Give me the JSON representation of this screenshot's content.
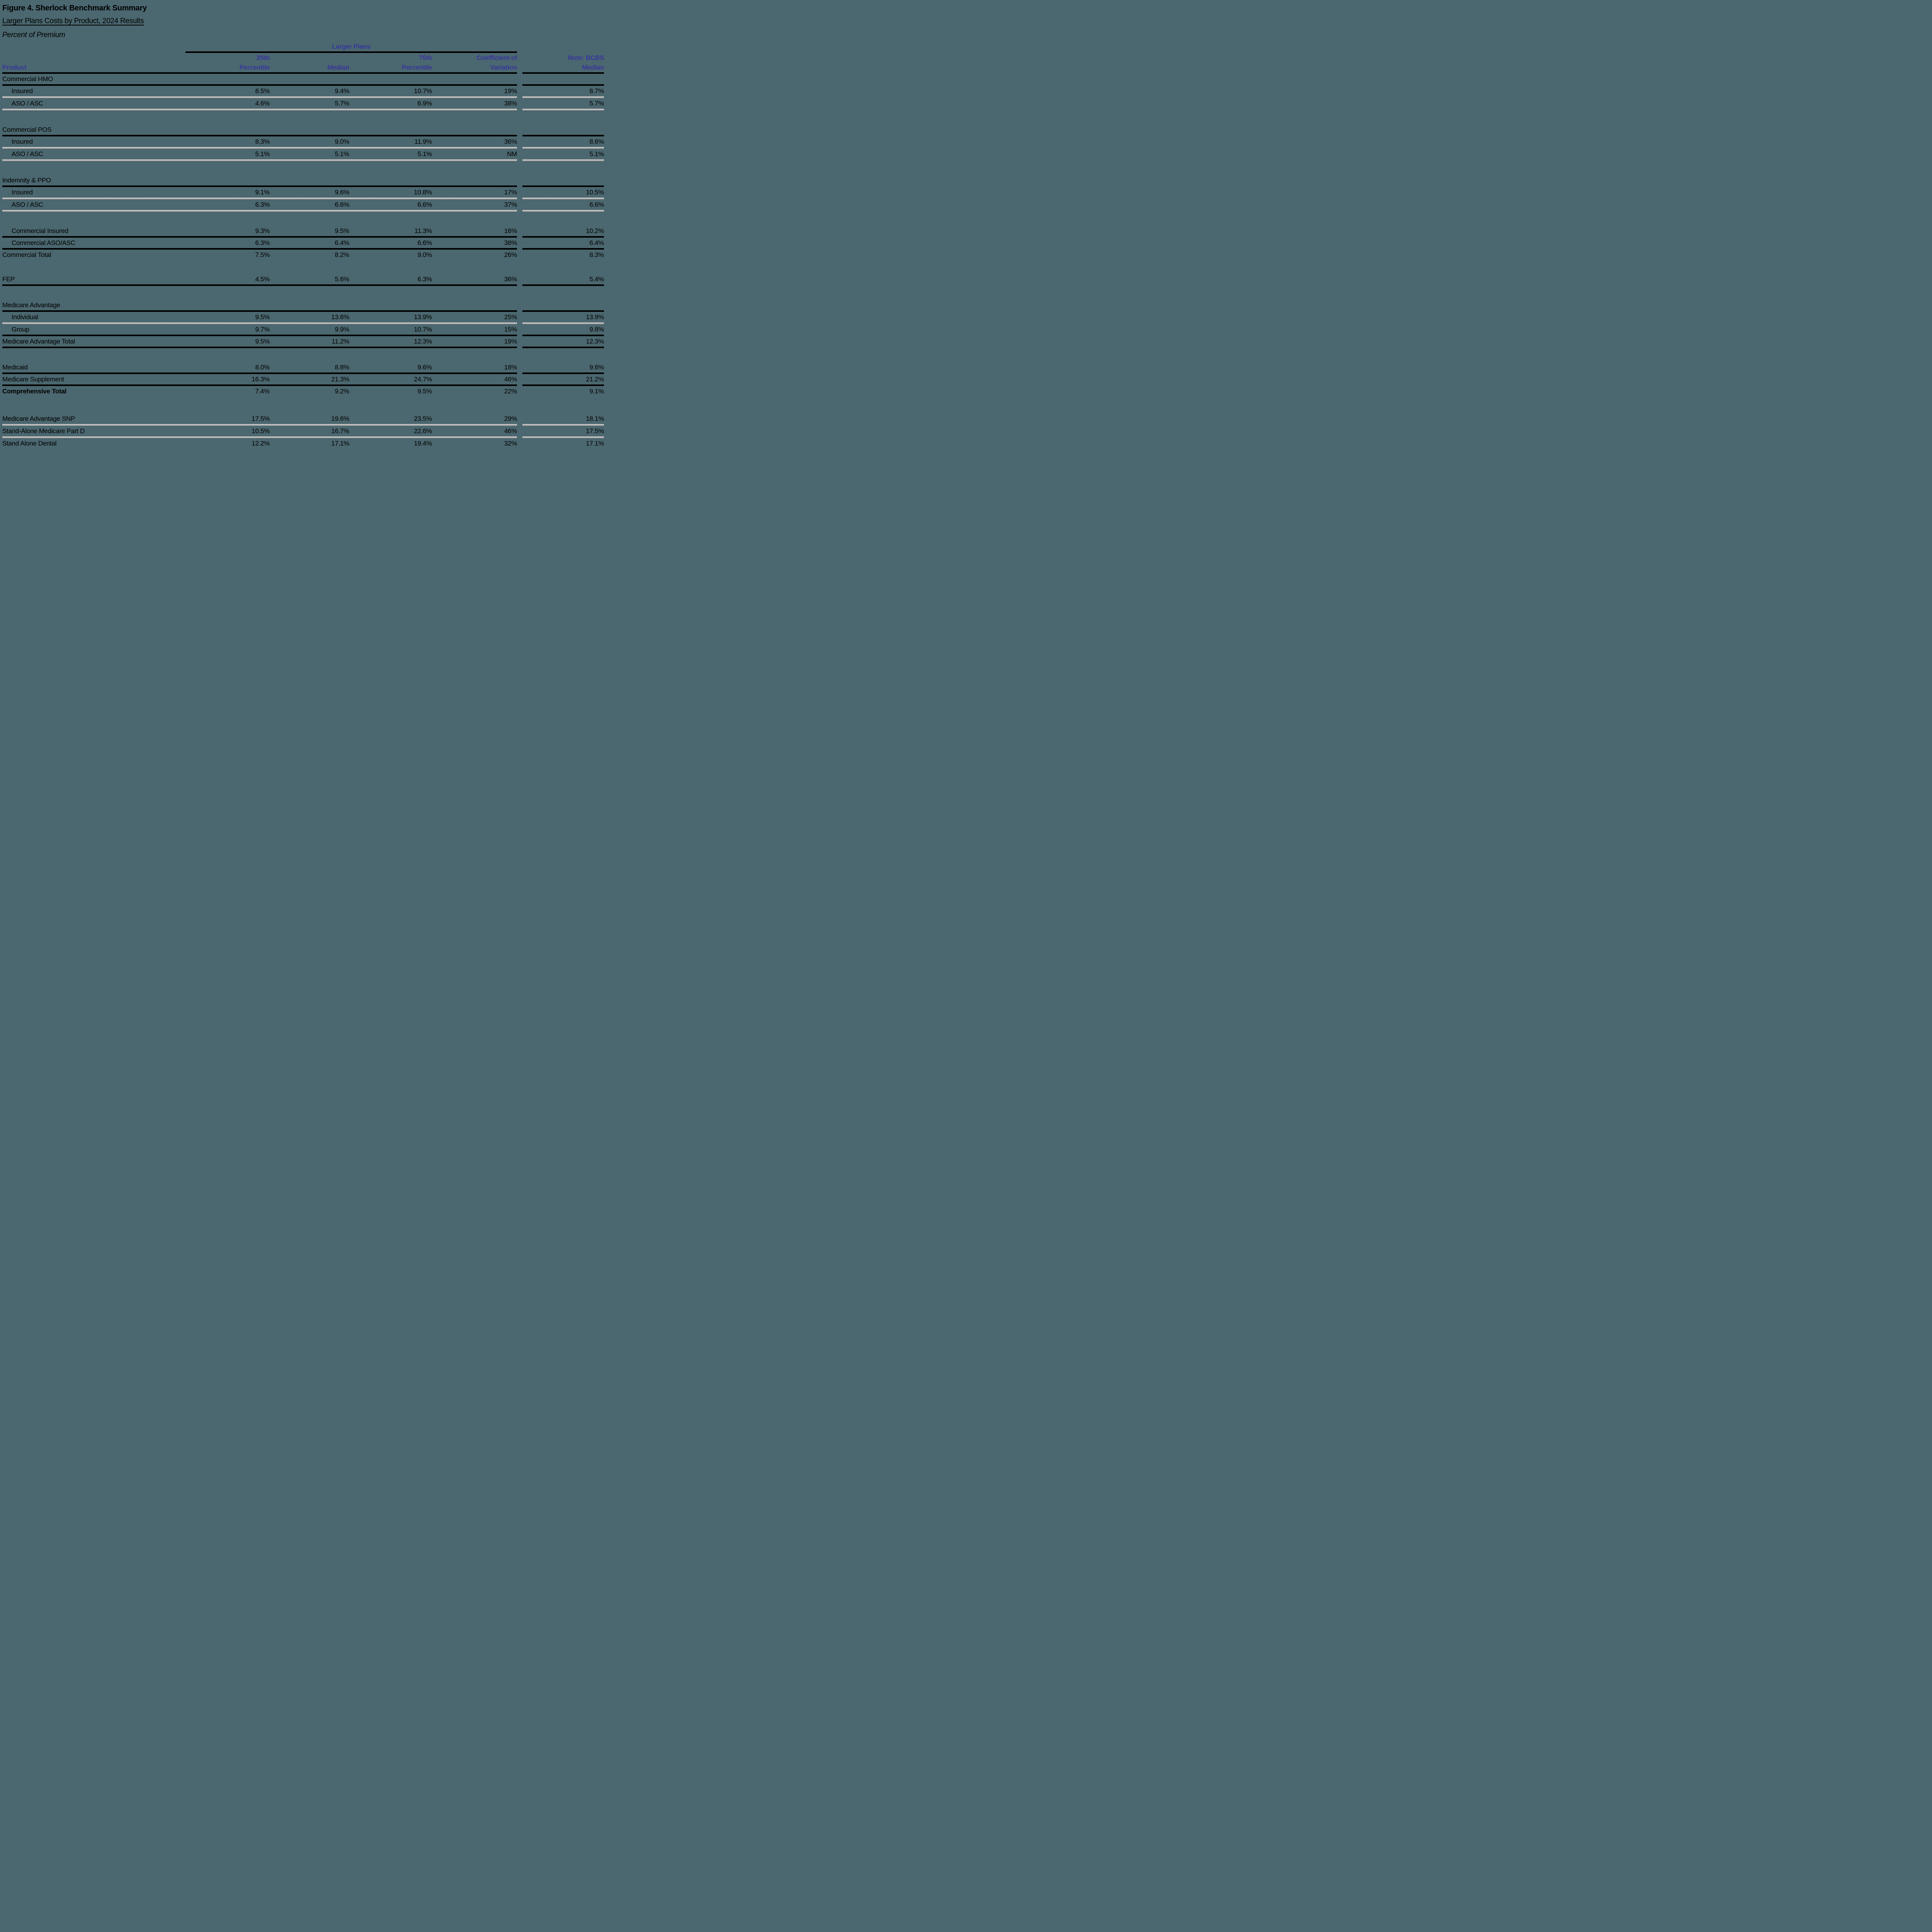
{
  "page": {
    "title": "Figure 4. Sherlock Benchmark Summary",
    "subtitle": "Larger Plans Costs by Product, 2024 Results",
    "unit_note": "Percent of Premium"
  },
  "colors": {
    "background": "#4b676f",
    "header_text": "#38379b",
    "body_text": "#000000",
    "rule_black": "#000000",
    "rule_gray": "#b0b0b0"
  },
  "table": {
    "span_header": "Larger Plans",
    "product_header": "Product",
    "columns": [
      {
        "line1": "25th",
        "line2": "Percentile"
      },
      {
        "line1": "",
        "line2": "Median"
      },
      {
        "line1": "75th",
        "line2": "Percentile"
      },
      {
        "line1": "Coefficient of",
        "line2": "Variation"
      }
    ],
    "note_column": {
      "line1": "Note: BCBS",
      "line2": "Median"
    },
    "rows": [
      {
        "type": "group",
        "label": "Commercial HMO",
        "rule": "black"
      },
      {
        "type": "data",
        "label": "Insured",
        "indent": true,
        "values": [
          "8.5%",
          "9.4%",
          "10.7%",
          "19%"
        ],
        "bcbs": "8.7%",
        "rule": "gray"
      },
      {
        "type": "data",
        "label": "ASO / ASC",
        "indent": true,
        "values": [
          "4.6%",
          "5.7%",
          "6.9%",
          "38%"
        ],
        "bcbs": "5.7%",
        "rule": "gray"
      },
      {
        "type": "spacer"
      },
      {
        "type": "group",
        "label": "Commercial POS",
        "rule": "black"
      },
      {
        "type": "data",
        "label": "Insured",
        "indent": true,
        "values": [
          "8.3%",
          "9.0%",
          "11.9%",
          "36%"
        ],
        "bcbs": "8.6%",
        "rule": "gray"
      },
      {
        "type": "data",
        "label": "ASO / ASC",
        "indent": true,
        "values": [
          "5.1%",
          "5.1%",
          "5.1%",
          "NM"
        ],
        "bcbs": "5.1%",
        "rule": "gray"
      },
      {
        "type": "spacer"
      },
      {
        "type": "group",
        "label": "Indemnity & PPO",
        "rule": "black"
      },
      {
        "type": "data",
        "label": "Insured",
        "indent": true,
        "values": [
          "9.1%",
          "9.6%",
          "10.8%",
          "17%"
        ],
        "bcbs": "10.5%",
        "rule": "gray"
      },
      {
        "type": "data",
        "label": "ASO / ASC",
        "indent": true,
        "values": [
          "6.3%",
          "6.6%",
          "6.6%",
          "37%"
        ],
        "bcbs": "6.6%",
        "rule": "gray"
      },
      {
        "type": "spacer"
      },
      {
        "type": "data",
        "label": "Commercial Insured",
        "indent": true,
        "values": [
          "9.3%",
          "9.5%",
          "11.3%",
          "16%"
        ],
        "bcbs": "10.2%",
        "rule": "black"
      },
      {
        "type": "data",
        "label": "Commercial ASO/ASC",
        "indent": true,
        "values": [
          "6.3%",
          "6.4%",
          "6.6%",
          "38%"
        ],
        "bcbs": "6.4%",
        "rule": "black"
      },
      {
        "type": "data",
        "label": "Commercial Total",
        "indent": false,
        "values": [
          "7.5%",
          "8.2%",
          "9.0%",
          "26%"
        ],
        "bcbs": "8.3%",
        "rule": null
      },
      {
        "type": "spacer"
      },
      {
        "type": "data",
        "label": "FEP",
        "indent": false,
        "values": [
          "4.5%",
          "5.6%",
          "6.3%",
          "36%"
        ],
        "bcbs": "5.4%",
        "rule": "black"
      },
      {
        "type": "spacer"
      },
      {
        "type": "group",
        "label": "Medicare Advantage",
        "rule": "black"
      },
      {
        "type": "data",
        "label": "Individual",
        "indent": true,
        "values": [
          "9.5%",
          "13.6%",
          "13.9%",
          "25%"
        ],
        "bcbs": "13.9%",
        "rule": "gray"
      },
      {
        "type": "data",
        "label": "Group",
        "indent": true,
        "values": [
          "9.7%",
          "9.9%",
          "10.7%",
          "15%"
        ],
        "bcbs": "9.8%",
        "rule": "black"
      },
      {
        "type": "data",
        "label": "Medicare Advantage Total",
        "indent": false,
        "values": [
          "9.5%",
          "11.2%",
          "12.3%",
          "19%"
        ],
        "bcbs": "12.3%",
        "rule": "black"
      },
      {
        "type": "spacer"
      },
      {
        "type": "data",
        "label": "Medicaid",
        "indent": false,
        "values": [
          "8.0%",
          "8.8%",
          "9.6%",
          "18%"
        ],
        "bcbs": "9.6%",
        "rule": "black"
      },
      {
        "type": "data",
        "label": "Medicare Supplement",
        "indent": false,
        "values": [
          "16.3%",
          "21.3%",
          "24.7%",
          "46%"
        ],
        "bcbs": "21.2%",
        "rule": "black"
      },
      {
        "type": "data",
        "label": "Comprehensive Total",
        "indent": false,
        "bold": true,
        "values": [
          "7.4%",
          "9.2%",
          "9.5%",
          "22%"
        ],
        "bcbs": "9.1%",
        "rule": null
      },
      {
        "type": "spacer",
        "size": "large"
      },
      {
        "type": "data",
        "label": "Medicare Advantage SNP",
        "indent": false,
        "values": [
          "17.5%",
          "19.6%",
          "23.5%",
          "29%"
        ],
        "bcbs": "18.1%",
        "rule": "gray"
      },
      {
        "type": "data",
        "label": "Stand-Alone Medicare Part D",
        "indent": false,
        "values": [
          "10.5%",
          "16.7%",
          "22.6%",
          "46%"
        ],
        "bcbs": "17.5%",
        "rule": "gray"
      },
      {
        "type": "data",
        "label": "Stand Alone Dental",
        "indent": false,
        "values": [
          "12.2%",
          "17.1%",
          "19.4%",
          "32%"
        ],
        "bcbs": "17.1%",
        "rule": null
      }
    ]
  }
}
